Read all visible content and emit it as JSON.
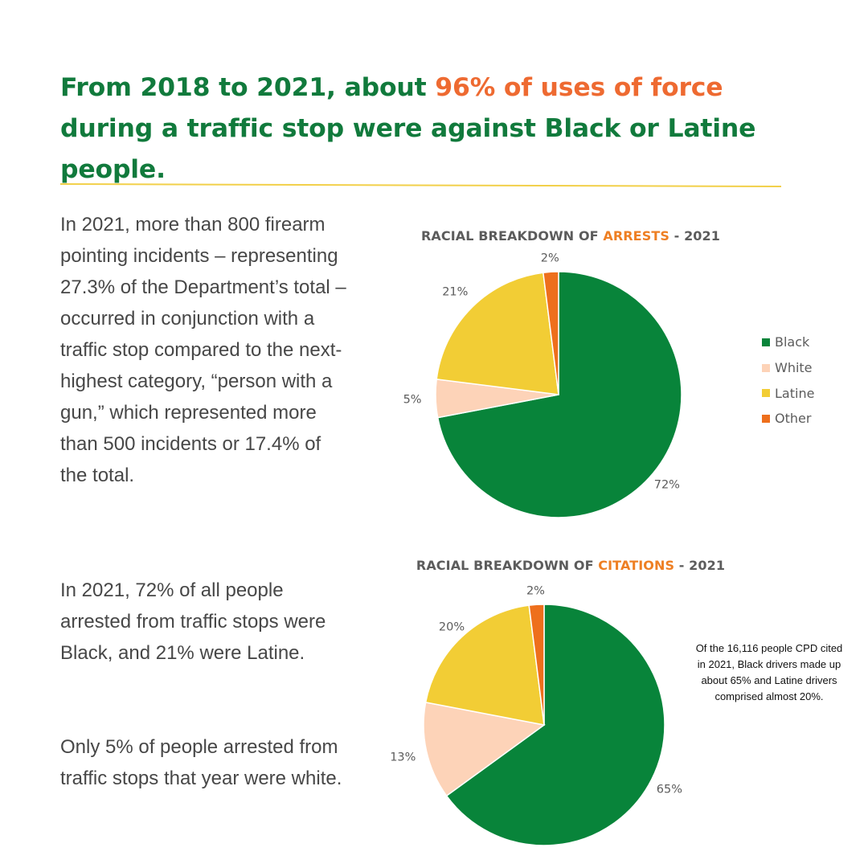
{
  "headline": {
    "part1": "From 2018 to 2021, about ",
    "highlight": "96% of uses of force",
    "part2": " during a traffic stop were against Black or Latine people."
  },
  "colors": {
    "headline_green": "#117a3c",
    "highlight_orange": "#ee6a31",
    "divider_yellow": "#f2d04a",
    "black_series": "#08843a",
    "white_series": "#fdd3b8",
    "latine_series": "#f2cd35",
    "other_series": "#ee6f1c"
  },
  "body": {
    "p1": "In 2021, more than 800 firearm pointing incidents – representing 27.3% of the Department’s total – occurred in conjunction with a traffic stop compared to the next-highest category, “person with a gun,” which represented more than 500 incidents or 17.4% of the total.",
    "p2": "In 2021, 72% of all people arrested from traffic stops were Black, and 21% were Latine.",
    "p3": "Only 5% of people arrested from traffic stops that year were white."
  },
  "legend": [
    "Black",
    "White",
    "Latine",
    "Other"
  ],
  "note": "Of the 16,116 people CPD cited in 2021, Black drivers made up about 65% and Latine drivers comprised almost 20%.",
  "chart_data": [
    {
      "type": "pie",
      "title_prefix": "RACIAL BREAKDOWN OF ",
      "title_highlight": "ARRESTS",
      "title_suffix": " - 2021",
      "categories": [
        "Black",
        "White",
        "Latine",
        "Other"
      ],
      "values": [
        72,
        5,
        21,
        2
      ],
      "labels": [
        "72%",
        "5%",
        "21%",
        "2%"
      ],
      "legend_position": "right"
    },
    {
      "type": "pie",
      "title_prefix": "RACIAL BREAKDOWN OF ",
      "title_highlight": "CITATIONS",
      "title_suffix": " - 2021",
      "categories": [
        "Black",
        "White",
        "Latine",
        "Other"
      ],
      "values": [
        65,
        13,
        20,
        2
      ],
      "labels": [
        "65%",
        "13%",
        "20%",
        "2%"
      ]
    }
  ]
}
